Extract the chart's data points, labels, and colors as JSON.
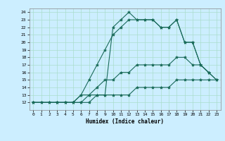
{
  "xlabel": "Humidex (Indice chaleur)",
  "bg_color": "#cceeff",
  "line_color": "#1a6b5a",
  "grid_color": "#aaddcc",
  "xlim": [
    -0.5,
    23.5
  ],
  "ylim": [
    11,
    24.5
  ],
  "xticks": [
    0,
    1,
    2,
    3,
    4,
    5,
    6,
    7,
    8,
    9,
    10,
    11,
    12,
    13,
    14,
    15,
    16,
    17,
    18,
    19,
    20,
    21,
    22,
    23
  ],
  "yticks": [
    12,
    13,
    14,
    15,
    16,
    17,
    18,
    19,
    20,
    21,
    22,
    23,
    24
  ],
  "lines": [
    {
      "x": [
        0,
        1,
        2,
        3,
        4,
        5,
        6,
        7,
        8,
        9,
        10,
        11,
        12,
        13,
        14,
        15,
        16,
        17,
        18,
        19,
        20,
        21,
        22,
        23
      ],
      "y": [
        12,
        12,
        12,
        12,
        12,
        12,
        12,
        12,
        13,
        13,
        13,
        13,
        13,
        14,
        14,
        14,
        14,
        14,
        15,
        15,
        15,
        15,
        15,
        15
      ]
    },
    {
      "x": [
        0,
        1,
        2,
        3,
        4,
        5,
        6,
        7,
        8,
        9,
        10,
        11,
        12,
        13,
        14,
        15,
        16,
        17,
        18,
        19,
        20,
        21,
        22,
        23
      ],
      "y": [
        12,
        12,
        12,
        12,
        12,
        12,
        12,
        13,
        14,
        15,
        15,
        16,
        16,
        17,
        17,
        17,
        17,
        17,
        18,
        18,
        17,
        17,
        16,
        15
      ]
    },
    {
      "x": [
        0,
        3,
        4,
        5,
        6,
        7,
        8,
        9,
        10,
        11,
        12,
        13,
        14,
        15,
        16,
        17,
        18,
        19,
        20,
        21,
        22
      ],
      "y": [
        12,
        12,
        12,
        12,
        13,
        15,
        17,
        19,
        21,
        22,
        23,
        23,
        23,
        23,
        22,
        22,
        23,
        20,
        20,
        17,
        16
      ]
    },
    {
      "x": [
        0,
        3,
        4,
        5,
        6,
        7,
        8,
        9,
        10,
        11,
        12,
        13,
        14,
        15,
        16,
        17,
        18,
        19,
        20,
        21,
        22,
        23
      ],
      "y": [
        12,
        12,
        12,
        12,
        13,
        13,
        13,
        13,
        22,
        23,
        24,
        23,
        23,
        23,
        22,
        22,
        23,
        20,
        20,
        17,
        16,
        15
      ]
    }
  ]
}
